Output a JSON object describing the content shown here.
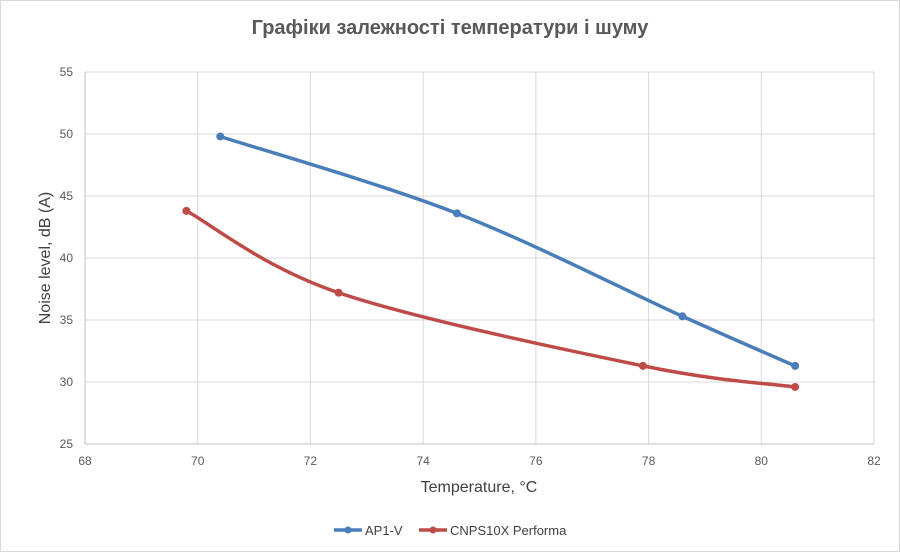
{
  "chart_data": {
    "type": "line",
    "title": "Графіки залежності температури і шуму",
    "xlabel": "Temperature, °C",
    "ylabel": "Noise level, dB (A)",
    "xlim": [
      68,
      82
    ],
    "ylim": [
      25,
      55
    ],
    "x_ticks": [
      68,
      70,
      72,
      74,
      76,
      78,
      80,
      82
    ],
    "y_ticks": [
      25,
      30,
      35,
      40,
      45,
      50,
      55
    ],
    "grid": true,
    "smooth": true,
    "legend_position": "bottom",
    "series": [
      {
        "name": "AP1-V",
        "color": "#4a7ebb",
        "points": [
          [
            70.4,
            49.8
          ],
          [
            74.6,
            43.6
          ],
          [
            78.6,
            35.3
          ],
          [
            80.6,
            31.3
          ]
        ]
      },
      {
        "name": "CNPS10X Performa",
        "color": "#be4b48",
        "points": [
          [
            69.8,
            43.8
          ],
          [
            72.5,
            37.2
          ],
          [
            77.9,
            31.3
          ],
          [
            80.6,
            29.6
          ]
        ]
      }
    ]
  }
}
